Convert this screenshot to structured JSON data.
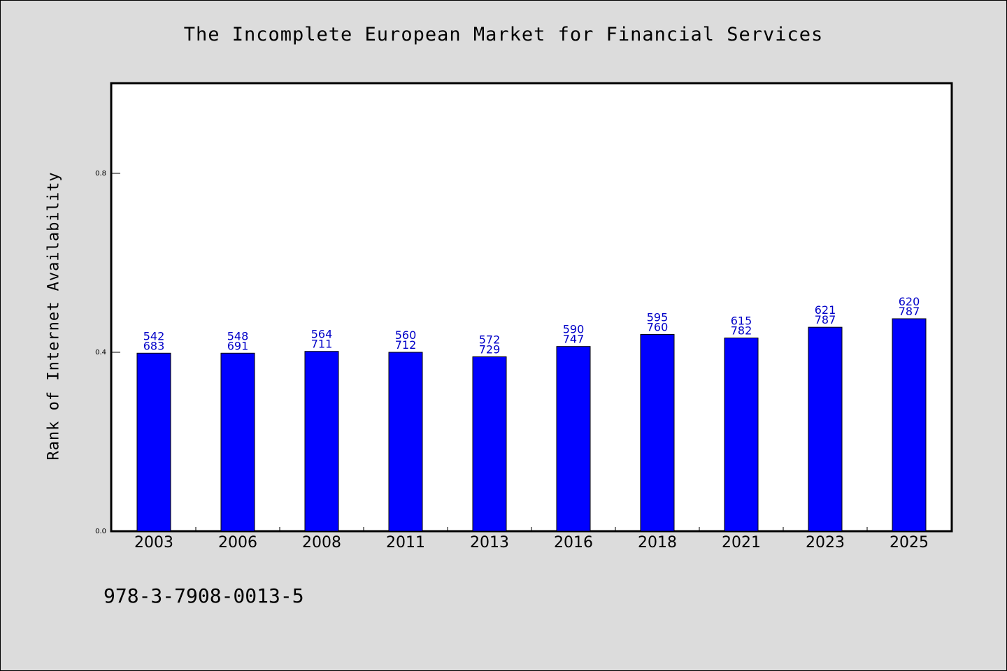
{
  "title": "The Incomplete European Market for Financial Services",
  "footer": "978-3-7908-0013-5",
  "colors": {
    "bar": "#0000ff",
    "data_label": "#0000c8",
    "background": "#dcdcdc",
    "plot_bg": "#ffffff"
  },
  "chart_data": {
    "type": "bar",
    "title": "The Incomplete European Market for Financial Services",
    "xlabel": "",
    "ylabel": "Rank of Internet Availability",
    "ylim": [
      0,
      1.0
    ],
    "yticks": [
      "0.0",
      "0.4",
      "0.8"
    ],
    "categories": [
      "2003",
      "2006",
      "2008",
      "2011",
      "2013",
      "2016",
      "2018",
      "2021",
      "2023",
      "2025"
    ],
    "values": [
      0.398,
      0.398,
      0.402,
      0.4,
      0.39,
      0.413,
      0.44,
      0.432,
      0.456,
      0.475
    ],
    "labels_top": [
      "542",
      "548",
      "564",
      "560",
      "572",
      "590",
      "595",
      "615",
      "621",
      "620"
    ],
    "labels_bottom": [
      "683",
      "691",
      "711",
      "712",
      "729",
      "747",
      "760",
      "782",
      "787",
      "787"
    ],
    "grid": false,
    "legend": "none"
  }
}
